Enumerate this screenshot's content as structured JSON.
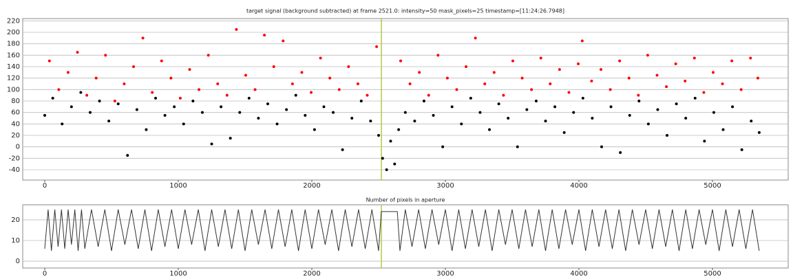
{
  "chart_data": [
    {
      "type": "scatter",
      "title": "target signal (background subtracted) at frame 2521.0: intensity=50 mask_pixels=25 timestamp=[11:24:26.7948]",
      "xlim": [
        -165,
        5567
      ],
      "ylim": [
        -58,
        224
      ],
      "xticks": [
        0,
        1000,
        2000,
        3000,
        4000,
        5000
      ],
      "yticks": [
        -40,
        -20,
        0,
        20,
        40,
        60,
        80,
        100,
        120,
        140,
        160,
        180,
        200,
        220
      ],
      "grid": true,
      "cursor_x": 2521,
      "cursor_color": "#b5c93a",
      "series": [
        {
          "name": "black",
          "color": "#000000",
          "x": [
            0,
            60,
            130,
            200,
            270,
            340,
            410,
            480,
            550,
            620,
            690,
            760,
            830,
            900,
            970,
            1040,
            1110,
            1180,
            1250,
            1320,
            1390,
            1460,
            1530,
            1600,
            1670,
            1740,
            1810,
            1880,
            1950,
            2020,
            2090,
            2160,
            2230,
            2300,
            2370,
            2440,
            2500,
            2530,
            2560,
            2590,
            2620,
            2650,
            2700,
            2770,
            2840,
            2910,
            2980,
            3050,
            3120,
            3190,
            3260,
            3330,
            3400,
            3470,
            3540,
            3610,
            3680,
            3750,
            3820,
            3890,
            3960,
            4030,
            4100,
            4170,
            4240,
            4310,
            4380,
            4450,
            4520,
            4590,
            4660,
            4730,
            4800,
            4870,
            4940,
            5010,
            5080,
            5150,
            5220,
            5290,
            5350
          ],
          "values": [
            55,
            85,
            40,
            70,
            95,
            60,
            80,
            45,
            75,
            -15,
            65,
            30,
            85,
            55,
            70,
            40,
            80,
            60,
            5,
            70,
            15,
            60,
            85,
            50,
            75,
            40,
            65,
            90,
            55,
            30,
            70,
            60,
            -5,
            50,
            80,
            45,
            20,
            -20,
            -40,
            10,
            -30,
            30,
            60,
            45,
            80,
            55,
            0,
            70,
            40,
            85,
            60,
            30,
            75,
            50,
            0,
            65,
            80,
            45,
            70,
            25,
            60,
            85,
            50,
            0,
            70,
            -10,
            55,
            80,
            40,
            65,
            20,
            75,
            50,
            85,
            10,
            60,
            30,
            70,
            -5,
            45,
            25
          ]
        },
        {
          "name": "red",
          "color": "#ff0000",
          "x": [
            35,
            105,
            175,
            245,
            315,
            385,
            455,
            525,
            595,
            665,
            735,
            805,
            875,
            945,
            1015,
            1085,
            1155,
            1225,
            1295,
            1365,
            1435,
            1505,
            1575,
            1645,
            1715,
            1785,
            1855,
            1925,
            1995,
            2065,
            2135,
            2205,
            2275,
            2345,
            2415,
            2485,
            2665,
            2735,
            2805,
            2875,
            2945,
            3015,
            3085,
            3155,
            3225,
            3295,
            3365,
            3435,
            3505,
            3575,
            3645,
            3715,
            3785,
            3855,
            3925,
            3995,
            4025,
            4095,
            4165,
            4235,
            4305,
            4375,
            4445,
            4515,
            4585,
            4655,
            4725,
            4795,
            4865,
            4935,
            5005,
            5075,
            5145,
            5215,
            5285,
            5340
          ],
          "values": [
            150,
            100,
            130,
            165,
            90,
            120,
            160,
            80,
            110,
            140,
            190,
            95,
            150,
            120,
            85,
            135,
            100,
            160,
            110,
            90,
            205,
            125,
            100,
            195,
            140,
            185,
            110,
            130,
            95,
            155,
            120,
            100,
            140,
            110,
            90,
            175,
            150,
            110,
            130,
            90,
            160,
            120,
            100,
            140,
            190,
            110,
            130,
            90,
            150,
            120,
            100,
            155,
            110,
            135,
            95,
            145,
            185,
            115,
            135,
            100,
            150,
            120,
            90,
            160,
            125,
            105,
            145,
            115,
            155,
            95,
            130,
            110,
            150,
            100,
            155,
            120
          ]
        }
      ]
    },
    {
      "type": "line",
      "title": "Number of pixels in aperture",
      "xlim": [
        -165,
        5567
      ],
      "ylim": [
        -3.3,
        27.3
      ],
      "xticks": [
        0,
        1000,
        2000,
        3000,
        4000,
        5000
      ],
      "yticks": [
        0,
        10,
        20
      ],
      "grid": true,
      "cursor_x": 2521,
      "cursor_color": "#b5c93a",
      "series": [
        {
          "name": "pixels",
          "color": "#333333",
          "x": [
            0,
            25,
            50,
            75,
            100,
            125,
            150,
            175,
            200,
            225,
            250,
            275,
            300,
            350,
            400,
            450,
            500,
            550,
            600,
            650,
            700,
            750,
            800,
            850,
            900,
            950,
            1000,
            1050,
            1100,
            1150,
            1200,
            1250,
            1300,
            1350,
            1400,
            1450,
            1500,
            1550,
            1600,
            1650,
            1700,
            1750,
            1800,
            1850,
            1900,
            1950,
            2000,
            2050,
            2100,
            2150,
            2200,
            2250,
            2300,
            2350,
            2400,
            2450,
            2500,
            2520,
            2640,
            2660,
            2700,
            2750,
            2800,
            2850,
            2900,
            2950,
            3000,
            3050,
            3100,
            3150,
            3200,
            3250,
            3300,
            3350,
            3400,
            3450,
            3500,
            3550,
            3600,
            3650,
            3700,
            3750,
            3800,
            3850,
            3900,
            3950,
            4000,
            4050,
            4100,
            4150,
            4200,
            4250,
            4300,
            4350,
            4400,
            4450,
            4500,
            4550,
            4600,
            4650,
            4700,
            4750,
            4800,
            4850,
            4900,
            4950,
            5000,
            5050,
            5100,
            5150,
            5200,
            5250,
            5300,
            5350
          ],
          "values": [
            6,
            25,
            5,
            25,
            7,
            25,
            6,
            25,
            8,
            25,
            5,
            25,
            6,
            25,
            7,
            25,
            5,
            25,
            8,
            25,
            6,
            25,
            5,
            25,
            7,
            25,
            6,
            25,
            8,
            25,
            5,
            25,
            7,
            25,
            6,
            25,
            5,
            25,
            8,
            25,
            6,
            25,
            7,
            25,
            5,
            25,
            6,
            25,
            8,
            25,
            5,
            25,
            7,
            25,
            6,
            25,
            5,
            24,
            24,
            5,
            25,
            7,
            25,
            6,
            25,
            8,
            25,
            5,
            25,
            6,
            25,
            7,
            25,
            5,
            25,
            8,
            25,
            6,
            25,
            7,
            25,
            5,
            25,
            6,
            25,
            8,
            25,
            5,
            25,
            7,
            25,
            6,
            25,
            5,
            25,
            8,
            25,
            6,
            25,
            7,
            25,
            5,
            25,
            6,
            25,
            8,
            25,
            5,
            25,
            7,
            25,
            6,
            25,
            5
          ]
        }
      ]
    }
  ]
}
